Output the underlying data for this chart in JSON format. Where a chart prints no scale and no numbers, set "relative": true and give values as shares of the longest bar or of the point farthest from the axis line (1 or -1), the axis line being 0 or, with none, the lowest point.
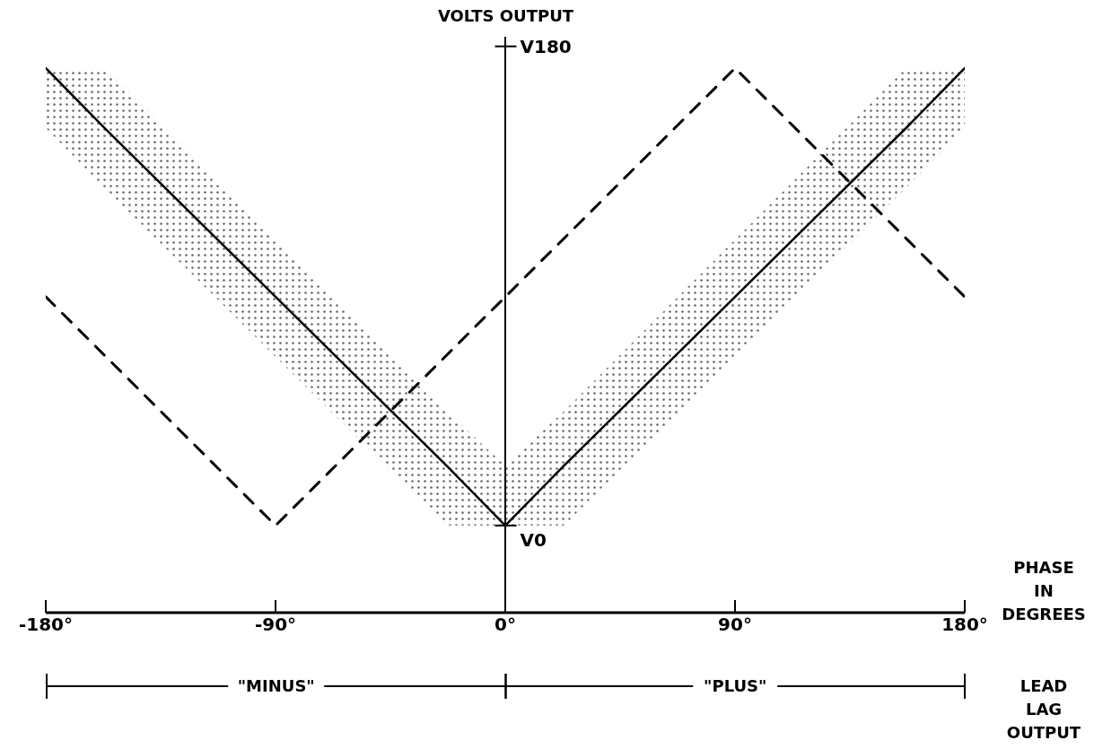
{
  "chart_data": {
    "type": "line",
    "ylabel": "VOLTS OUTPUT",
    "xlabel": "PHASE IN DEGREES",
    "relative": true,
    "xlim": [
      -180,
      180
    ],
    "xticks": [
      {
        "value": -180,
        "label": "-180°"
      },
      {
        "value": -90,
        "label": "-90°"
      },
      {
        "value": 0,
        "label": "0°"
      },
      {
        "value": 90,
        "label": "90°"
      },
      {
        "value": 180,
        "label": "180°"
      }
    ],
    "marker": "none",
    "series": [
      {
        "color": "#000000",
        "line_style": "solid",
        "x": [
          -180,
          -157,
          -23,
          0,
          23,
          157,
          180
        ],
        "values": [
          1,
          0.89,
          0.27,
          0.16,
          0.27,
          0.89,
          1
        ],
        "lower": [
          0.89,
          0.78,
          0.16,
          0.16,
          0.16,
          0.78,
          0.89
        ],
        "upper": [
          1,
          1,
          0.37,
          0.27,
          0.37,
          1,
          1
        ]
      },
      {
        "color": "#000000",
        "line_style": "dashed",
        "x": [
          -180,
          -90,
          90,
          180
        ],
        "values": [
          0.58,
          0.16,
          1,
          0.58
        ]
      }
    ],
    "ref_lines": [
      {
        "axis": "x",
        "value": 0,
        "color": "#000000"
      }
    ],
    "annotations": [
      {
        "text": "V0",
        "x": 0,
        "y": 0.16
      },
      {
        "text": "V180",
        "x": 0,
        "y": 1.04
      },
      "\"MINUS\"",
      "\"PLUS\"",
      "LEAD LAG OUTPUT"
    ]
  }
}
